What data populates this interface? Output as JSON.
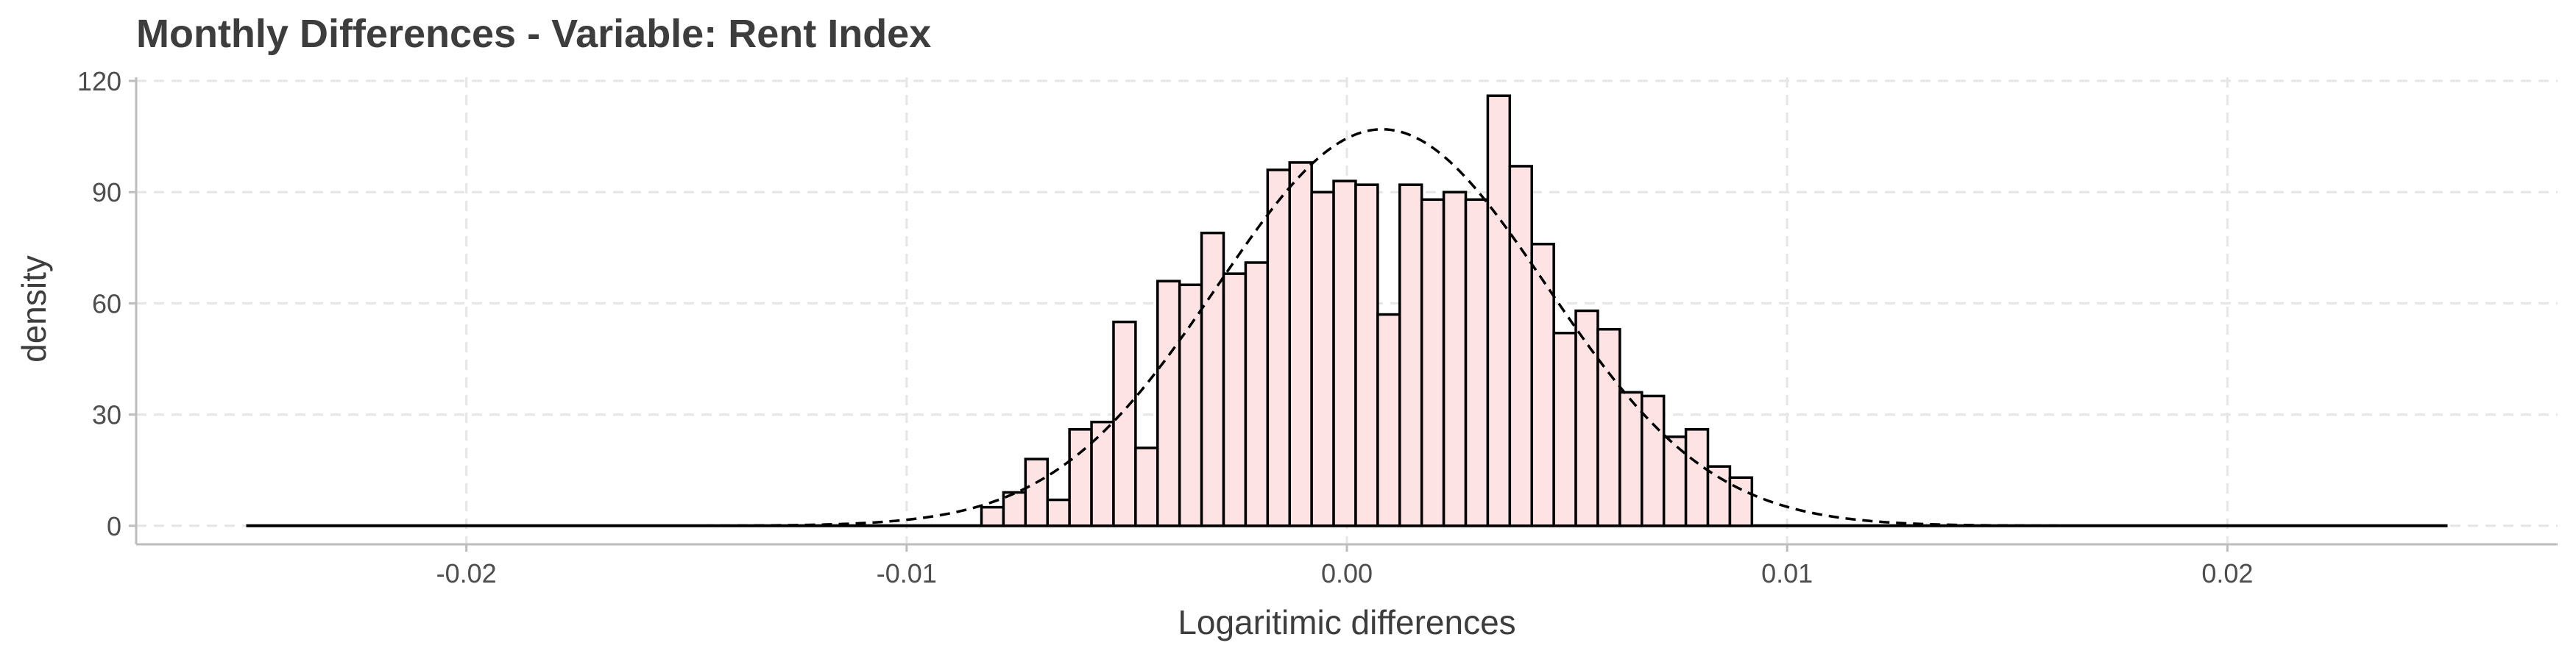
{
  "chart_data": {
    "type": "histogram",
    "title": "Monthly Differences - Variable: Rent Index",
    "xlabel": "Logaritimic differences",
    "ylabel": "density",
    "xlim": [
      -0.0275,
      0.0275
    ],
    "ylim": [
      -5,
      121
    ],
    "x_ticks": [
      -0.02,
      -0.01,
      0.0,
      0.01,
      0.02
    ],
    "x_tick_labels": [
      "-0.02",
      "-0.01",
      "0.00",
      "0.01",
      "0.02"
    ],
    "y_ticks": [
      0,
      30,
      60,
      90,
      120
    ],
    "y_tick_labels": [
      "0",
      "30",
      "60",
      "90",
      "120"
    ],
    "grid": true,
    "grid_style": "dashed",
    "baseline_range": [
      -0.025,
      0.025
    ],
    "bin_width": 0.0005,
    "bins": [
      {
        "x0": -0.0083,
        "density": 5
      },
      {
        "x0": -0.0078,
        "density": 9
      },
      {
        "x0": -0.0073,
        "density": 18
      },
      {
        "x0": -0.0068,
        "density": 7
      },
      {
        "x0": -0.0063,
        "density": 26
      },
      {
        "x0": -0.0058,
        "density": 28
      },
      {
        "x0": -0.0053,
        "density": 55
      },
      {
        "x0": -0.0048,
        "density": 21
      },
      {
        "x0": -0.0043,
        "density": 66
      },
      {
        "x0": -0.0038,
        "density": 65
      },
      {
        "x0": -0.0033,
        "density": 79
      },
      {
        "x0": -0.0028,
        "density": 68
      },
      {
        "x0": -0.0023,
        "density": 71
      },
      {
        "x0": -0.0018,
        "density": 96
      },
      {
        "x0": -0.0013,
        "density": 98
      },
      {
        "x0": -0.0008,
        "density": 90
      },
      {
        "x0": -0.0003,
        "density": 93
      },
      {
        "x0": 0.0002,
        "density": 92
      },
      {
        "x0": 0.0007,
        "density": 57
      },
      {
        "x0": 0.0012,
        "density": 92
      },
      {
        "x0": 0.0017,
        "density": 88
      },
      {
        "x0": 0.0022,
        "density": 90
      },
      {
        "x0": 0.0027,
        "density": 88
      },
      {
        "x0": 0.0032,
        "density": 116
      },
      {
        "x0": 0.0037,
        "density": 97
      },
      {
        "x0": 0.0042,
        "density": 76
      },
      {
        "x0": 0.0047,
        "density": 52
      },
      {
        "x0": 0.0052,
        "density": 58
      },
      {
        "x0": 0.0057,
        "density": 53
      },
      {
        "x0": 0.0062,
        "density": 36
      },
      {
        "x0": 0.0067,
        "density": 35
      },
      {
        "x0": 0.0072,
        "density": 24
      },
      {
        "x0": 0.0077,
        "density": 26
      },
      {
        "x0": 0.0082,
        "density": 16
      },
      {
        "x0": 0.0087,
        "density": 13
      }
    ],
    "normal_curve": {
      "mean": 0.0008,
      "sd": 0.00373,
      "style": "dashed"
    },
    "colors": {
      "bar_fill": "#fde3e3",
      "bar_stroke": "#000000",
      "grid": "#e6e6e6",
      "axis": "#bdbdbd",
      "text": "#3d3d3d",
      "curve": "#000000"
    }
  }
}
